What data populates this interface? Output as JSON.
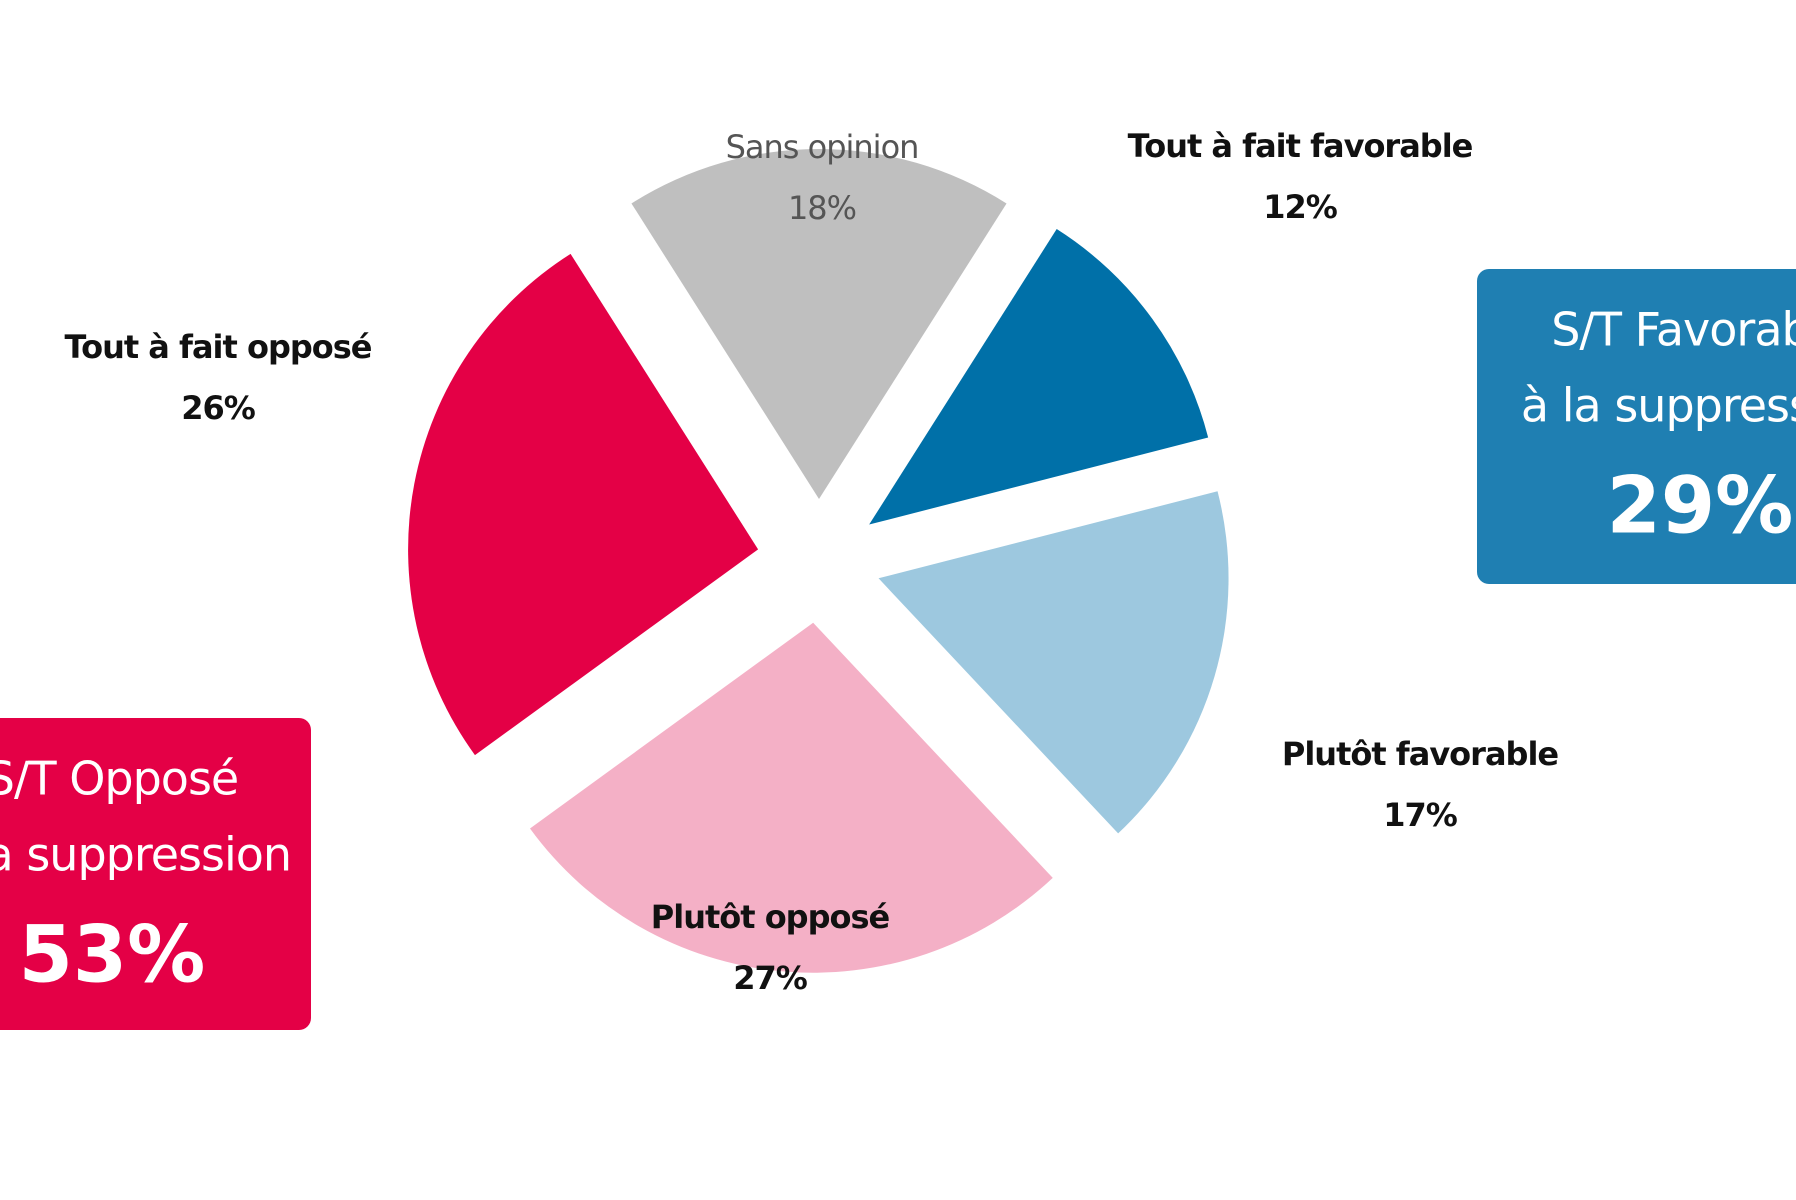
{
  "chart_data": {
    "type": "pie",
    "categories": [
      "Tout à fait favorable",
      "Plutôt favorable",
      "Plutôt opposé",
      "Tout à fait opposé",
      "Sans opinion"
    ],
    "values": [
      12,
      17,
      27,
      26,
      18
    ],
    "value_labels": [
      "12%",
      "17%",
      "27%",
      "26%",
      "18%"
    ],
    "colors": [
      "#0070a8",
      "#9dc8df",
      "#f4b0c6",
      "#e40046",
      "#bfbfbf"
    ],
    "annotations": [
      {
        "line1": "S/T Favorable",
        "line2": "à la suppression",
        "total": "29%",
        "color": "#1f7fb2"
      },
      {
        "line1": "S/T Opposé",
        "line2": "à la suppression",
        "total": "53%",
        "color": "#e40046"
      }
    ]
  }
}
